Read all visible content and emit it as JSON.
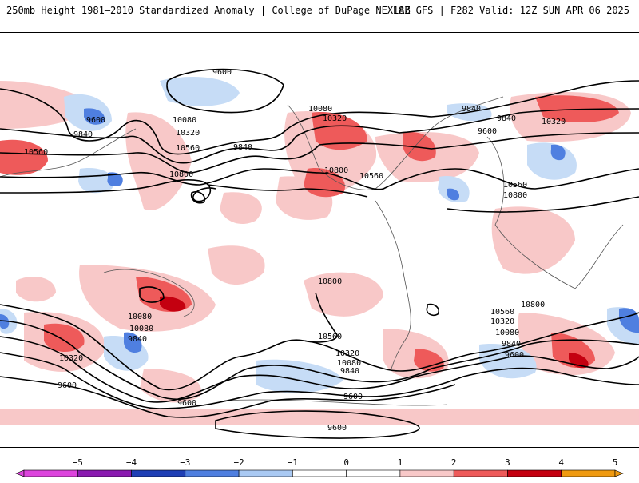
{
  "header": {
    "left": "250mb Height 1981–2010 Standardized Anomaly | College of DuPage NEXLAB",
    "right": "18Z GFS | F282 Valid: 12Z SUN APR 06 2025"
  },
  "map": {
    "contour_labels": [
      "9600",
      "9600",
      "9840",
      "9840",
      "9840",
      "10080",
      "10080",
      "10320",
      "10320",
      "10320",
      "10560",
      "10560",
      "10800",
      "10800",
      "10560",
      "10800",
      "10800",
      "9840",
      "9600",
      "10800",
      "10560",
      "10080",
      "9840",
      "10320",
      "10080",
      "9840",
      "9600",
      "10560",
      "10320",
      "10080",
      "10560",
      "10320",
      "10080",
      "9840",
      "9600",
      "9600",
      "9600",
      "9600"
    ]
  },
  "colorbar": {
    "ticks": [
      "−5",
      "−4",
      "−3",
      "−2",
      "−1",
      "0",
      "1",
      "2",
      "3",
      "4",
      "5"
    ],
    "colors": [
      "#dd44dd",
      "#8a1ab0",
      "#1f3fb5",
      "#4f7fe0",
      "#a9c9f3",
      "#ffffff",
      "#ffffff",
      "#f8c8c8",
      "#ee5a5a",
      "#c40010",
      "#f09a10"
    ]
  },
  "colors": {
    "positive_weak": "#f8c8c8",
    "positive_mid": "#ee5a5a",
    "positive_strong": "#c40010",
    "negative_weak": "#c6dcf6",
    "negative_mid": "#4f7fe0",
    "contour": "#000000"
  }
}
